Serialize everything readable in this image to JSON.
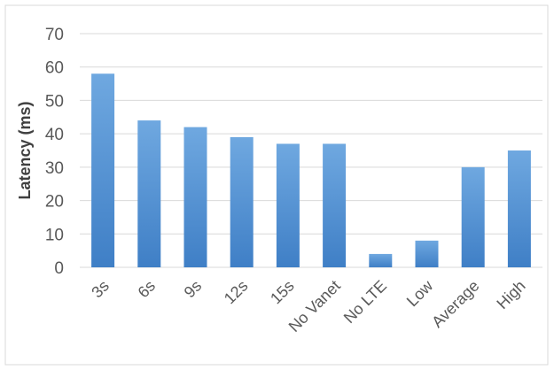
{
  "chart_data": {
    "type": "bar",
    "title": "",
    "xlabel": "",
    "ylabel": "Latency (ms)",
    "ylim": [
      0,
      70
    ],
    "yticks": [
      0,
      10,
      20,
      30,
      40,
      50,
      60,
      70
    ],
    "grid": true,
    "legend": "none",
    "categories": [
      "3s",
      "6s",
      "9s",
      "12s",
      "15s",
      "No Vanet",
      "No LTE",
      "Low",
      "Average",
      "High"
    ],
    "values": [
      58,
      44,
      42,
      39,
      37,
      37,
      4,
      8,
      30,
      35
    ],
    "colors": {
      "bar_top": "#6fa8e0",
      "bar_bottom": "#3f7fc6",
      "grid": "#d9d9d9",
      "text": "#595959"
    }
  }
}
